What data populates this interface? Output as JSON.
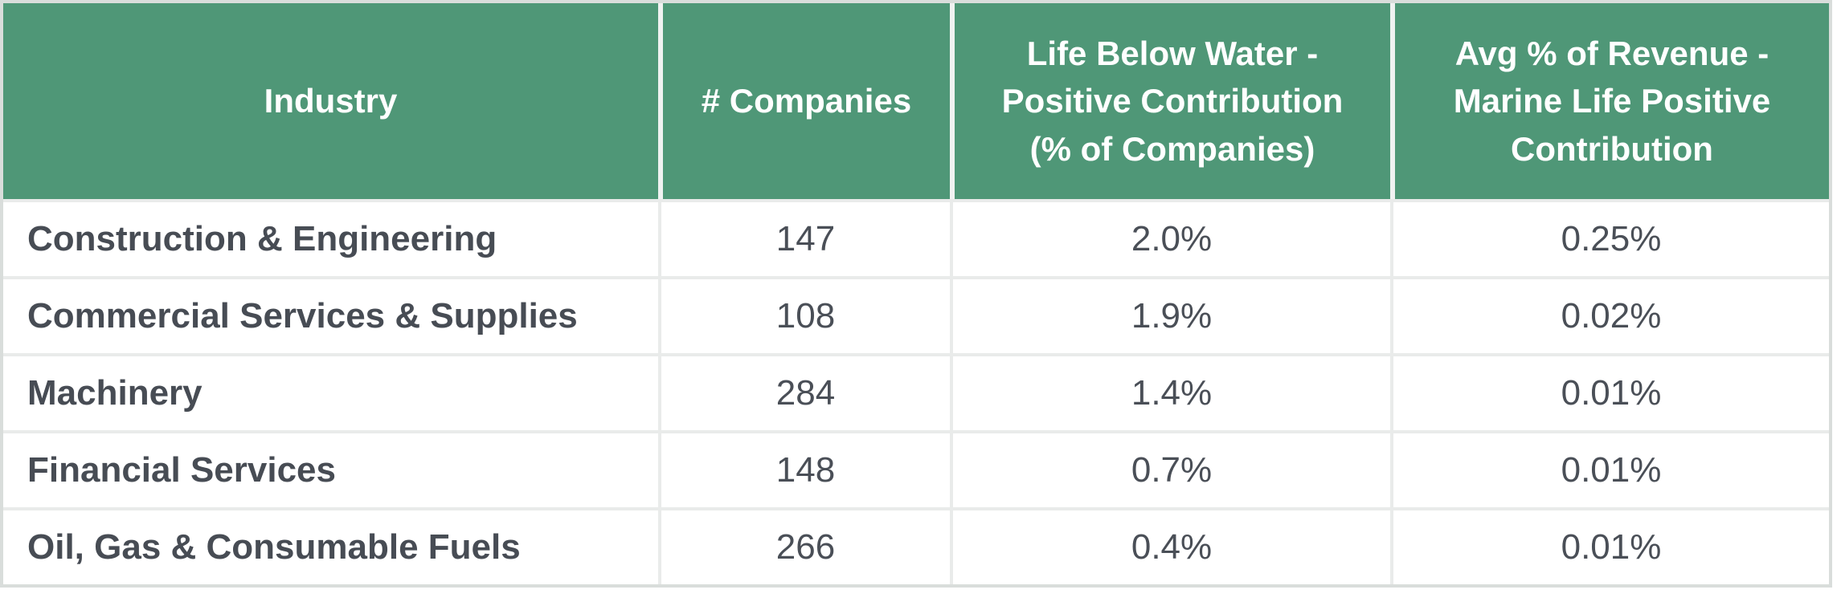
{
  "table": {
    "headers": [
      {
        "label": "Industry"
      },
      {
        "label": "# Companies"
      },
      {
        "label": "Life Below Water -\nPositive Contribution\n(% of Companies)"
      },
      {
        "label": "Avg % of Revenue -\nMarine Life Positive\nContribution"
      }
    ],
    "rows": [
      {
        "industry": "Construction & Engineering",
        "companies": "147",
        "lbw_positive_pct": "2.0%",
        "avg_revenue_pct": "0.25%"
      },
      {
        "industry": "Commercial Services & Supplies",
        "companies": "108",
        "lbw_positive_pct": "1.9%",
        "avg_revenue_pct": "0.02%"
      },
      {
        "industry": "Machinery",
        "companies": "284",
        "lbw_positive_pct": "1.4%",
        "avg_revenue_pct": "0.01%"
      },
      {
        "industry": "Financial Services",
        "companies": "148",
        "lbw_positive_pct": "0.7%",
        "avg_revenue_pct": "0.01%"
      },
      {
        "industry": "Oil, Gas & Consumable Fuels",
        "companies": "266",
        "lbw_positive_pct": "0.4%",
        "avg_revenue_pct": "0.01%"
      }
    ]
  },
  "colors": {
    "header_bg": "#4F9777",
    "header_text": "#FFFFFF",
    "body_text": "#4A4F57",
    "industry_text": "#474C54",
    "row_bg": "#FFFFFF",
    "grid_line": "#E9EBEA",
    "header_divider": "#F0F2F1",
    "outer_border": "#D9DDDB"
  },
  "chart_data": {
    "type": "table",
    "columns": [
      "Industry",
      "# Companies",
      "Life Below Water - Positive Contribution (% of Companies)",
      "Avg % of Revenue - Marine Life Positive Contribution"
    ],
    "rows": [
      [
        "Construction & Engineering",
        147,
        "2.0%",
        "0.25%"
      ],
      [
        "Commercial Services & Supplies",
        108,
        "1.9%",
        "0.02%"
      ],
      [
        "Machinery",
        284,
        "1.4%",
        "0.01%"
      ],
      [
        "Financial Services",
        148,
        "0.7%",
        "0.01%"
      ],
      [
        "Oil, Gas & Consumable Fuels",
        266,
        "0.4%",
        "0.01%"
      ]
    ],
    "notes": {
      "header_alignment": "center",
      "industry_column_alignment": "left",
      "value_columns_alignment": "center",
      "grid": "on"
    }
  }
}
